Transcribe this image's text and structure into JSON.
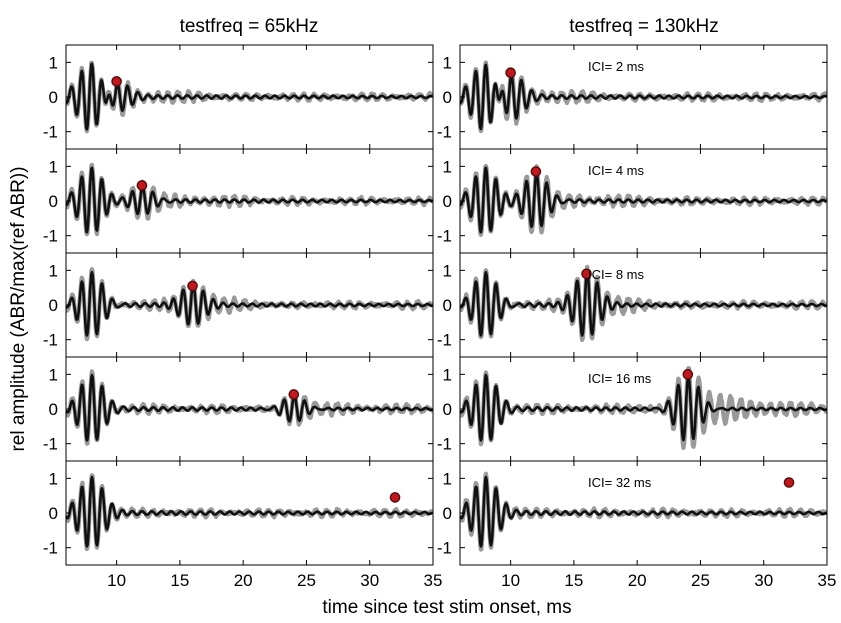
{
  "chart_data": {
    "type": "line",
    "ylabel": "rel amplitude (ABR/max(ref ABR))",
    "xlabel": "time since test stim onset, ms",
    "xlim": [
      6,
      35
    ],
    "ylim": [
      -1.5,
      1.5
    ],
    "xticks": [
      10,
      15,
      20,
      25,
      30,
      35
    ],
    "yticks": [
      -1,
      0,
      1
    ],
    "grid": false,
    "colors": {
      "grey_trace": "#9a9a9a",
      "black_trace": "#111111",
      "marker": "#c0181c",
      "marker_edge": "#5a0a0a"
    },
    "columns": [
      {
        "title": "testfreq = 65kHz",
        "panels": [
          {
            "ici_label": "",
            "ici_ms": 2,
            "peak": {
              "x": 10,
              "y": 0.45
            },
            "probe_amp": 0.45,
            "grey_extra": 0.1
          },
          {
            "ici_label": "",
            "ici_ms": 4,
            "peak": {
              "x": 12,
              "y": 0.45
            },
            "probe_amp": 0.45,
            "grey_extra": 0.1
          },
          {
            "ici_label": "",
            "ici_ms": 8,
            "peak": {
              "x": 16,
              "y": 0.55
            },
            "probe_amp": 0.55,
            "grey_extra": 0.12
          },
          {
            "ici_label": "",
            "ici_ms": 16,
            "peak": {
              "x": 24,
              "y": 0.42
            },
            "probe_amp": 0.42,
            "grey_extra": 0.1
          },
          {
            "ici_label": "",
            "ici_ms": 32,
            "peak": {
              "x": 32,
              "y": 0.45
            },
            "probe_amp": 0.45,
            "grey_extra": 0.08
          }
        ]
      },
      {
        "title": "testfreq = 130kHz",
        "panels": [
          {
            "ici_label": "ICI= 2 ms",
            "ici_ms": 2,
            "peak": {
              "x": 10,
              "y": 0.7
            },
            "probe_amp": 0.7,
            "grey_extra": 0.12
          },
          {
            "ici_label": "ICI= 4 ms",
            "ici_ms": 4,
            "peak": {
              "x": 12,
              "y": 0.85
            },
            "probe_amp": 0.85,
            "grey_extra": 0.12
          },
          {
            "ici_label": "ICI= 8 ms",
            "ici_ms": 8,
            "peak": {
              "x": 16,
              "y": 0.9
            },
            "probe_amp": 0.9,
            "grey_extra": 0.15
          },
          {
            "ici_label": "ICI= 16 ms",
            "ici_ms": 16,
            "peak": {
              "x": 24,
              "y": 1.0
            },
            "probe_amp": 1.0,
            "grey_extra": 0.35
          },
          {
            "ici_label": "ICI= 32 ms",
            "ici_ms": 32,
            "peak": {
              "x": 32,
              "y": 0.88
            },
            "probe_amp": 0.88,
            "grey_extra": 0.12
          }
        ]
      }
    ]
  }
}
